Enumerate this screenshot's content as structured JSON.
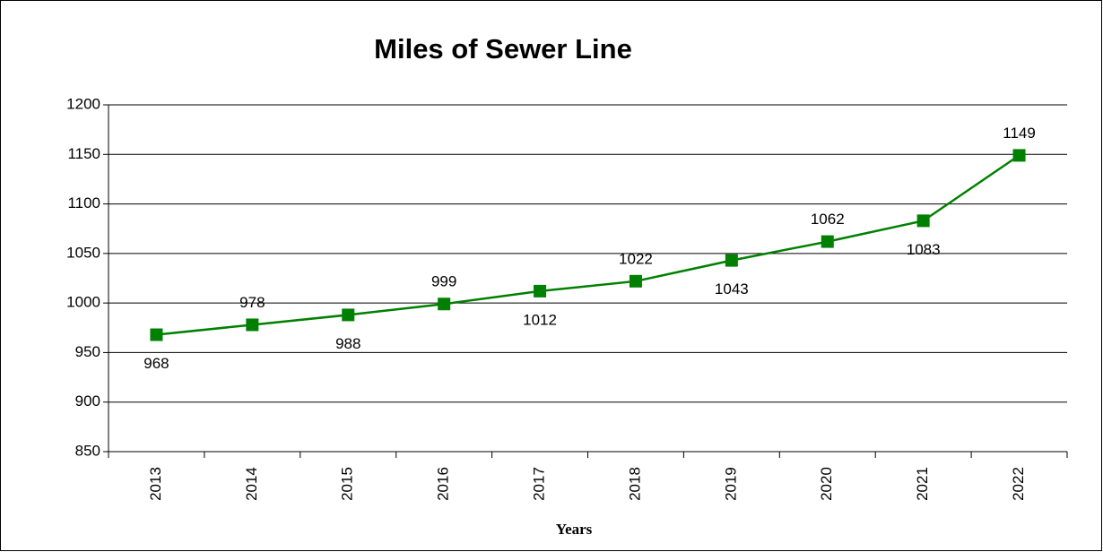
{
  "chart_data": {
    "type": "line",
    "title": "Miles of Sewer Line",
    "x_label": "Years",
    "categories": [
      "2013",
      "2014",
      "2015",
      "2016",
      "2017",
      "2018",
      "2019",
      "2020",
      "2021",
      "2022"
    ],
    "values": [
      968,
      978,
      988,
      999,
      1012,
      1022,
      1043,
      1062,
      1083,
      1149
    ],
    "color": "#008000",
    "ylim": [
      850,
      1200
    ],
    "yticks": [
      850,
      900,
      950,
      1000,
      1050,
      1100,
      1150,
      1200
    ],
    "grid": true
  }
}
